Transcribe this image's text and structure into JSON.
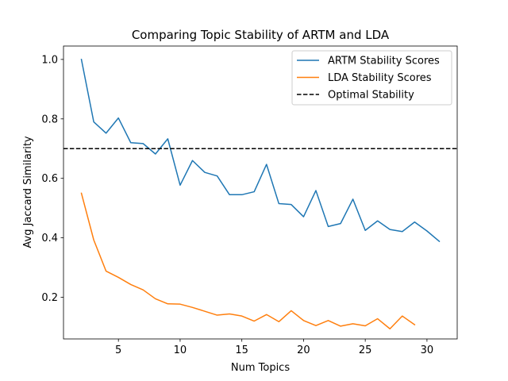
{
  "chart_data": {
    "type": "line",
    "title": "Comparing Topic Stability of ARTM and LDA",
    "xlabel": "Num Topics",
    "ylabel": "Avg Jaccard Similarity",
    "xlim": [
      0.55,
      32.45
    ],
    "ylim": [
      0.06,
      1.045
    ],
    "xticks": [
      5,
      10,
      15,
      20,
      25,
      30
    ],
    "xtick_labels": [
      "5",
      "10",
      "15",
      "20",
      "25",
      "30"
    ],
    "yticks": [
      0.2,
      0.4,
      0.6,
      0.8,
      1.0
    ],
    "ytick_labels": [
      "0.2",
      "0.4",
      "0.6",
      "0.8",
      "1.0"
    ],
    "grid": false,
    "legend_position": "top-right",
    "series": [
      {
        "name": "ARTM Stability Scores",
        "color": "#1f77b4",
        "style": "solid",
        "x": [
          2,
          3,
          4,
          5,
          6,
          7,
          8,
          9,
          10,
          11,
          12,
          13,
          14,
          15,
          16,
          17,
          18,
          19,
          20,
          21,
          22,
          23,
          24,
          25,
          26,
          27,
          28,
          29,
          30,
          31
        ],
        "values": [
          1.0,
          0.79,
          0.752,
          0.803,
          0.72,
          0.717,
          0.682,
          0.733,
          0.577,
          0.66,
          0.62,
          0.608,
          0.545,
          0.545,
          0.555,
          0.647,
          0.515,
          0.512,
          0.471,
          0.559,
          0.438,
          0.448,
          0.53,
          0.425,
          0.457,
          0.428,
          0.421,
          0.453,
          0.423,
          0.388
        ]
      },
      {
        "name": "LDA Stability Scores",
        "color": "#ff7f0e",
        "style": "solid",
        "x": [
          2,
          3,
          4,
          5,
          6,
          7,
          8,
          9,
          10,
          11,
          12,
          13,
          14,
          15,
          16,
          17,
          18,
          19,
          20,
          21,
          22,
          23,
          24,
          25,
          26,
          27,
          28,
          29
        ],
        "values": [
          0.55,
          0.393,
          0.288,
          0.267,
          0.243,
          0.225,
          0.195,
          0.178,
          0.177,
          0.166,
          0.153,
          0.14,
          0.144,
          0.137,
          0.12,
          0.142,
          0.118,
          0.155,
          0.122,
          0.105,
          0.122,
          0.103,
          0.111,
          0.104,
          0.128,
          0.094,
          0.137,
          0.108
        ]
      },
      {
        "name": "Optimal Stability",
        "color": "#000000",
        "style": "dashed",
        "type": "hline",
        "value": 0.7
      }
    ]
  }
}
